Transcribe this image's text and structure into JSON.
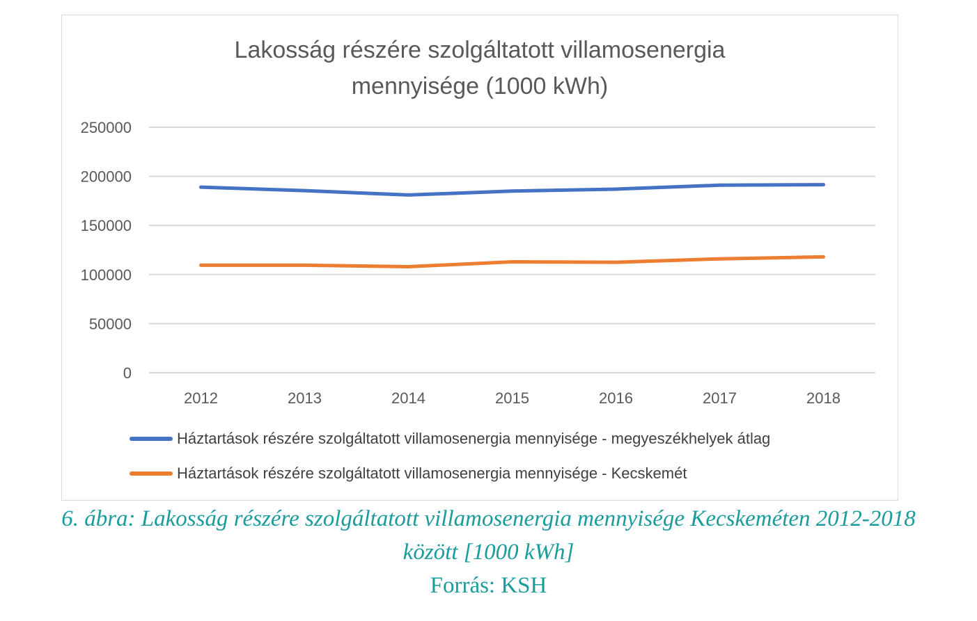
{
  "chart_data": {
    "type": "line",
    "title_line1": "Lakosság részére szolgáltatott villamosenergia",
    "title_line2": "mennyisége (1000 kWh)",
    "categories": [
      "2012",
      "2013",
      "2014",
      "2015",
      "2016",
      "2017",
      "2018"
    ],
    "y_ticks": [
      "0",
      "50000",
      "100000",
      "150000",
      "200000",
      "250000"
    ],
    "ylim": [
      0,
      250000
    ],
    "grid": true,
    "legend_position": "bottom",
    "series": [
      {
        "name": "Háztartások részére szolgáltatott villamosenergia mennyisége - megyeszékhelyek átlag",
        "color": "#4472c4",
        "values": [
          189000,
          185500,
          181000,
          185000,
          187000,
          191000,
          191500
        ]
      },
      {
        "name": "Háztartások részére szolgáltatott villamosenergia mennyisége - Kecskemét",
        "color": "#ed7d31",
        "values": [
          109500,
          109500,
          108000,
          113000,
          112500,
          116000,
          118000
        ]
      }
    ]
  },
  "caption": {
    "line1": "6. ábra: Lakosság részére szolgáltatott villamosenergia mennyisége Kecskeméten 2012-2018",
    "line2": "között [1000 kWh]",
    "source": "Forrás: KSH"
  }
}
